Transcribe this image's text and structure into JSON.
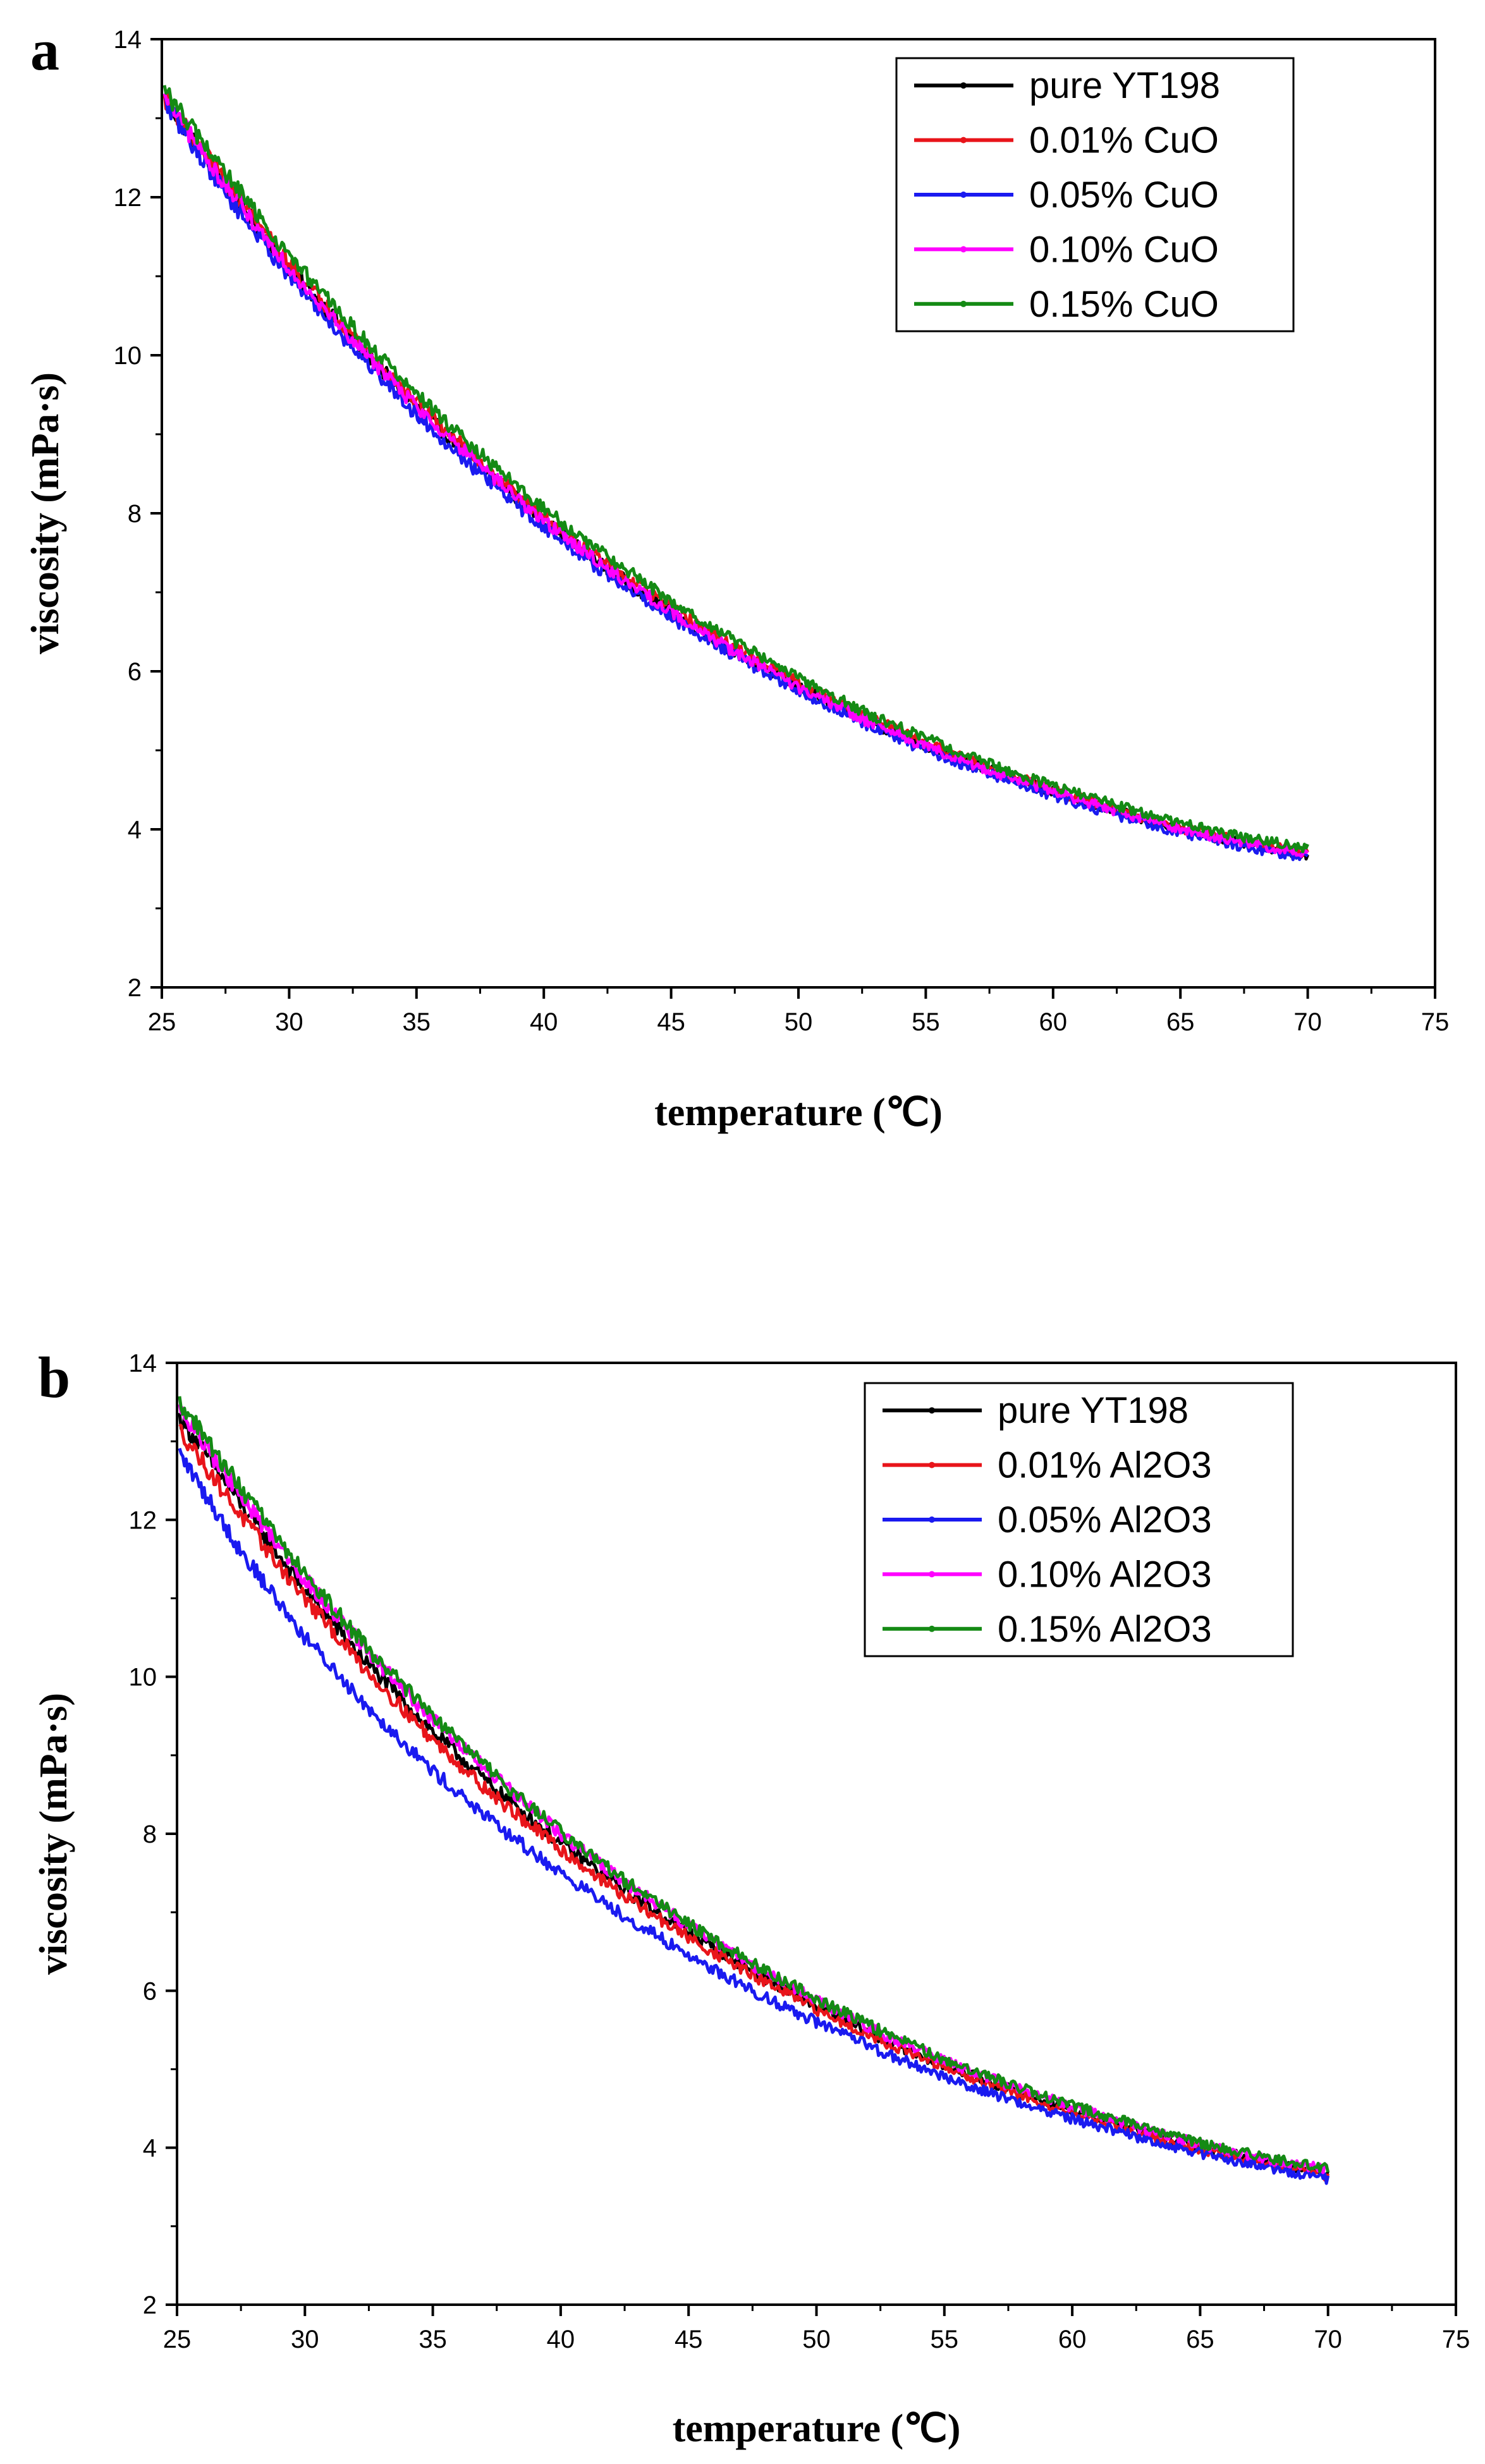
{
  "chart_data": [
    {
      "type": "line",
      "panel_label": "a",
      "xlabel": "temperature (℃)",
      "ylabel": "viscosity (mPa·s)",
      "xlim": [
        25,
        75
      ],
      "ylim": [
        2,
        14
      ],
      "xticks": [
        25,
        30,
        35,
        40,
        45,
        50,
        55,
        60,
        65,
        70,
        75
      ],
      "yticks": [
        2,
        4,
        6,
        8,
        10,
        12,
        14
      ],
      "legend_position": "top-right",
      "x": [
        25,
        27.5,
        30,
        32.5,
        35,
        37.5,
        40,
        42.5,
        45,
        47.5,
        50,
        52.5,
        55,
        57.5,
        60,
        62.5,
        65,
        67.5,
        70
      ],
      "series": [
        {
          "name": "pure YT198",
          "color": "#000000",
          "values": [
            13.3,
            12.15,
            11.1,
            10.2,
            9.35,
            8.6,
            7.9,
            7.3,
            6.75,
            6.25,
            5.8,
            5.4,
            5.05,
            4.75,
            4.48,
            4.23,
            4.0,
            3.82,
            3.68
          ]
        },
        {
          "name": "0.01% CuO",
          "color": "#e8141a",
          "values": [
            13.3,
            12.2,
            11.15,
            10.25,
            9.4,
            8.65,
            7.95,
            7.35,
            6.8,
            6.3,
            5.85,
            5.45,
            5.1,
            4.78,
            4.5,
            4.25,
            4.02,
            3.84,
            3.7
          ]
        },
        {
          "name": "0.05% CuO",
          "color": "#1a1af0",
          "values": [
            13.25,
            12.05,
            11.0,
            10.1,
            9.25,
            8.5,
            7.82,
            7.22,
            6.68,
            6.2,
            5.75,
            5.35,
            5.0,
            4.7,
            4.43,
            4.18,
            3.96,
            3.78,
            3.64
          ]
        },
        {
          "name": "0.10% CuO",
          "color": "#ff00ff",
          "values": [
            13.3,
            12.15,
            11.1,
            10.2,
            9.35,
            8.6,
            7.9,
            7.3,
            6.75,
            6.25,
            5.8,
            5.4,
            5.05,
            4.75,
            4.48,
            4.23,
            4.0,
            3.83,
            3.69
          ]
        },
        {
          "name": "0.15% CuO",
          "color": "#148a14",
          "values": [
            13.4,
            12.3,
            11.25,
            10.35,
            9.5,
            8.75,
            8.05,
            7.45,
            6.88,
            6.38,
            5.92,
            5.5,
            5.15,
            4.83,
            4.55,
            4.3,
            4.08,
            3.9,
            3.76
          ]
        }
      ]
    },
    {
      "type": "line",
      "panel_label": "b",
      "xlabel": "temperature (℃)",
      "ylabel": "viscosity (mPa·s)",
      "xlim": [
        25,
        75
      ],
      "ylim": [
        2,
        14
      ],
      "xticks": [
        25,
        30,
        35,
        40,
        45,
        50,
        55,
        60,
        65,
        70,
        75
      ],
      "yticks": [
        2,
        4,
        6,
        8,
        10,
        12,
        14
      ],
      "legend_position": "top-right",
      "x": [
        25,
        27.5,
        30,
        32.5,
        35,
        37.5,
        40,
        42.5,
        45,
        47.5,
        50,
        52.5,
        55,
        57.5,
        60,
        62.5,
        65,
        67.5,
        70
      ],
      "series": [
        {
          "name": "pure YT198",
          "color": "#000000",
          "values": [
            13.35,
            12.2,
            11.1,
            10.15,
            9.3,
            8.55,
            7.88,
            7.28,
            6.74,
            6.25,
            5.8,
            5.4,
            5.05,
            4.75,
            4.48,
            4.23,
            4.01,
            3.83,
            3.68
          ]
        },
        {
          "name": "0.01% Al2O3",
          "color": "#e8141a",
          "values": [
            13.2,
            12.05,
            11.0,
            10.05,
            9.2,
            8.45,
            7.8,
            7.2,
            6.68,
            6.2,
            5.76,
            5.37,
            5.02,
            4.72,
            4.45,
            4.2,
            3.98,
            3.8,
            3.64
          ]
        },
        {
          "name": "0.05% Al2O3",
          "color": "#1a1af0",
          "values": [
            12.9,
            11.6,
            10.5,
            9.6,
            8.8,
            8.1,
            7.5,
            6.95,
            6.45,
            6.0,
            5.6,
            5.23,
            4.9,
            4.62,
            4.37,
            4.14,
            3.93,
            3.76,
            3.6
          ]
        },
        {
          "name": "0.10% Al2O3",
          "color": "#ff00ff",
          "values": [
            13.45,
            12.3,
            11.25,
            10.3,
            9.45,
            8.7,
            8.0,
            7.38,
            6.83,
            6.33,
            5.88,
            5.47,
            5.1,
            4.8,
            4.52,
            4.27,
            4.04,
            3.86,
            3.72
          ]
        },
        {
          "name": "0.15% Al2O3",
          "color": "#148a14",
          "values": [
            13.55,
            12.4,
            11.3,
            10.35,
            9.5,
            8.72,
            8.02,
            7.4,
            6.85,
            6.35,
            5.9,
            5.49,
            5.12,
            4.82,
            4.54,
            4.29,
            4.06,
            3.88,
            3.74
          ]
        }
      ]
    }
  ]
}
